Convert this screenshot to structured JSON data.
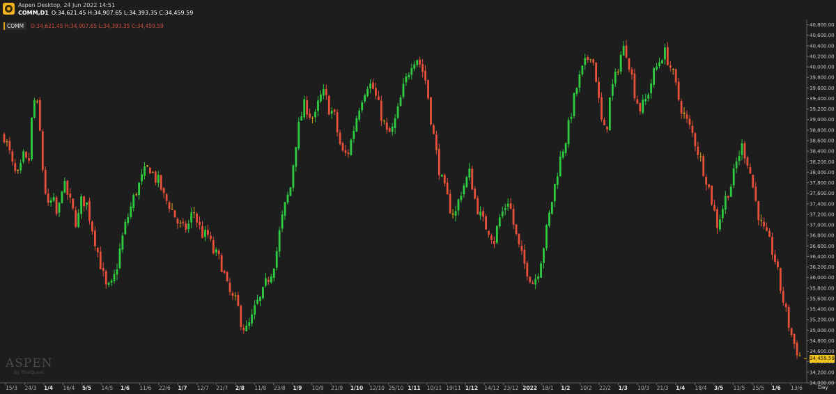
{
  "app": {
    "title": "Aspen Desktop, 24 Jun 2022 14:51",
    "symbol_tf": "COMM,D1",
    "ohlc_text": "O:34,621.45 H:34,907.65 L:34,393.35 C:34,459.59"
  },
  "legend": {
    "symbol": "COMM",
    "ohlc_text": "O:34,621.45  H:34,907.65  L:34,393.35  C:34,459.59"
  },
  "watermark": {
    "brand": "ASPEN",
    "sub": "by ThaiQuest"
  },
  "colors": {
    "up": "#2ecc40",
    "down": "#e8503a",
    "doji": "#d9a320",
    "background": "#1d1d1d",
    "badge": "#f0c419"
  },
  "chart_data": {
    "type": "candlestick",
    "timeframe": "D1",
    "y_axis": {
      "ylim": [
        34000,
        40900
      ],
      "ticks": [
        "40,800.00",
        "40,600.00",
        "40,400.00",
        "40,200.00",
        "40,000.00",
        "39,800.00",
        "39,600.00",
        "39,400.00",
        "39,200.00",
        "39,000.00",
        "38,800.00",
        "38,600.00",
        "38,400.00",
        "38,200.00",
        "38,000.00",
        "37,800.00",
        "37,600.00",
        "37,400.00",
        "37,200.00",
        "37,000.00",
        "36,800.00",
        "36,600.00",
        "36,400.00",
        "36,200.00",
        "36,000.00",
        "35,800.00",
        "35,600.00",
        "35,400.00",
        "35,200.00",
        "35,000.00",
        "34,800.00",
        "34,600.00",
        "34,400.00",
        "34,200.00",
        "34,000.00"
      ]
    },
    "x_axis": {
      "label": "Day",
      "ticks": [
        {
          "label": "15/3",
          "strong": false
        },
        {
          "label": "24/3",
          "strong": false
        },
        {
          "label": "1/4",
          "strong": true
        },
        {
          "label": "16/4",
          "strong": false
        },
        {
          "label": "5/5",
          "strong": true
        },
        {
          "label": "14/5",
          "strong": false
        },
        {
          "label": "1/6",
          "strong": true
        },
        {
          "label": "11/6",
          "strong": false
        },
        {
          "label": "22/6",
          "strong": false
        },
        {
          "label": "1/7",
          "strong": true
        },
        {
          "label": "12/7",
          "strong": false
        },
        {
          "label": "21/7",
          "strong": false
        },
        {
          "label": "2/8",
          "strong": true
        },
        {
          "label": "11/8",
          "strong": false
        },
        {
          "label": "23/8",
          "strong": false
        },
        {
          "label": "1/9",
          "strong": true
        },
        {
          "label": "10/9",
          "strong": false
        },
        {
          "label": "21/9",
          "strong": false
        },
        {
          "label": "1/10",
          "strong": true
        },
        {
          "label": "12/10",
          "strong": false
        },
        {
          "label": "25/10",
          "strong": false
        },
        {
          "label": "1/11",
          "strong": true
        },
        {
          "label": "10/11",
          "strong": false
        },
        {
          "label": "19/11",
          "strong": false
        },
        {
          "label": "1/12",
          "strong": true
        },
        {
          "label": "14/12",
          "strong": false
        },
        {
          "label": "23/12",
          "strong": false
        },
        {
          "label": "2022",
          "strong": true
        },
        {
          "label": "18/1",
          "strong": false
        },
        {
          "label": "1/2",
          "strong": true
        },
        {
          "label": "10/2",
          "strong": false
        },
        {
          "label": "22/2",
          "strong": false
        },
        {
          "label": "1/3",
          "strong": true
        },
        {
          "label": "10/3",
          "strong": false
        },
        {
          "label": "21/3",
          "strong": false
        },
        {
          "label": "1/4",
          "strong": true
        },
        {
          "label": "18/4",
          "strong": false
        },
        {
          "label": "3/5",
          "strong": true
        },
        {
          "label": "13/5",
          "strong": false
        },
        {
          "label": "25/5",
          "strong": false
        },
        {
          "label": "1/6",
          "strong": true
        },
        {
          "label": "13/6",
          "strong": false
        }
      ]
    },
    "close_path": [
      38700,
      38400,
      38000,
      37900,
      38300,
      38100,
      39400,
      39200,
      38000,
      37300,
      37500,
      37100,
      37800,
      37600,
      37300,
      37000,
      37500,
      37400,
      37000,
      36600,
      36200,
      35800,
      35800,
      36100,
      36600,
      37000,
      37300,
      37600,
      37800,
      38000,
      38100,
      37900,
      37800,
      37500,
      37400,
      37200,
      37000,
      36900,
      37000,
      37300,
      37000,
      36800,
      36800,
      36500,
      36400,
      36200,
      35800,
      35600,
      35500,
      35100,
      35000,
      35200,
      35500,
      35600,
      35900,
      36100,
      36400,
      37000,
      37400,
      37700,
      38500,
      39000,
      39300,
      39100,
      39000,
      39400,
      39500,
      39200,
      39100,
      38600,
      38300,
      38400,
      38800,
      39200,
      39500,
      39700,
      39600,
      39300,
      39000,
      38700,
      38800,
      39100,
      39500,
      39800,
      40100,
      40200,
      40000,
      39700,
      39000,
      38400,
      37900,
      37600,
      37300,
      37200,
      37600,
      37800,
      38000,
      37500,
      37200,
      37000,
      36900,
      36700,
      37100,
      37300,
      37500,
      37000,
      36600,
      36300,
      36100,
      35900,
      36100,
      36500,
      37000,
      37500,
      38000,
      38400,
      38700,
      39200,
      39600,
      39900,
      40100,
      40300,
      39800,
      39000,
      38700,
      39500,
      39800,
      40200,
      40400,
      40000,
      39500,
      39200,
      39300,
      39600,
      39900,
      40100,
      40300,
      40100,
      39800,
      39400,
      39100,
      38900,
      38700,
      38400,
      38100,
      37800,
      37400,
      37000,
      37300,
      37600,
      37800,
      38200,
      38500,
      38300,
      37900,
      37400,
      37000,
      36800,
      36600,
      36300,
      35800,
      35400,
      35000,
      34700,
      34500
    ],
    "last_price": "34,459.59"
  }
}
